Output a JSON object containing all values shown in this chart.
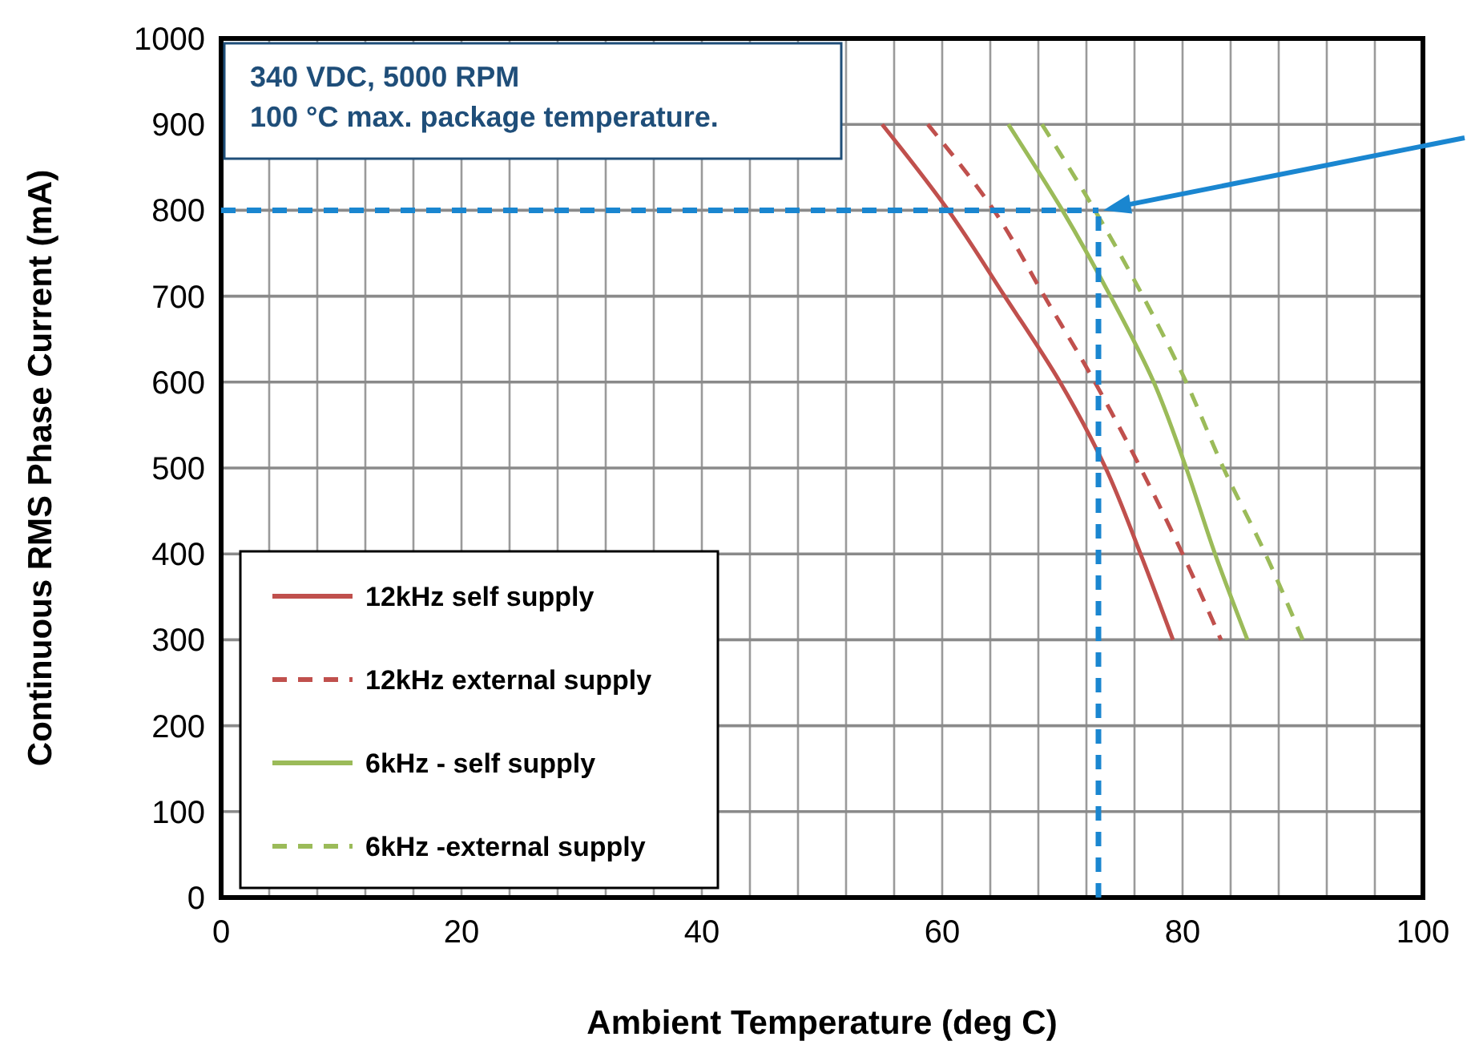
{
  "chart_data": {
    "type": "line",
    "xlabel": "Ambient Temperature (deg C)",
    "ylabel": "Continuous RMS Phase Current (mA)",
    "annotations": [
      "340 VDC, 5000 RPM\n100 °C max. package temperature."
    ],
    "xlim": [
      0,
      100
    ],
    "xticks": [
      0,
      20,
      40,
      60,
      80,
      100
    ],
    "ylim": [
      0,
      1000
    ],
    "yticks": [
      0,
      100,
      200,
      300,
      400,
      500,
      600,
      700,
      800,
      900,
      1000
    ],
    "grid": true,
    "legend": "bottom left",
    "series": [
      {
        "name": "12kHz self supply",
        "color": "#c0504d",
        "line_style": "solid",
        "x": [
          55,
          60.5,
          65.2,
          69.8,
          73.6,
          76.5,
          79.2
        ],
        "values": [
          900,
          800,
          700,
          600,
          500,
          400,
          300
        ]
      },
      {
        "name": "12kHz external supply",
        "color": "#c0504d",
        "line_style": "dashed",
        "x": [
          58.8,
          64.3,
          68.5,
          72.7,
          76.5,
          80,
          83.2
        ],
        "values": [
          900,
          800,
          700,
          600,
          500,
          400,
          300
        ]
      },
      {
        "name": "6kHz - self supply",
        "color": "#9bbb59",
        "line_style": "solid",
        "x": [
          65.5,
          70,
          74,
          77.6,
          80.3,
          82.7,
          85.4
        ],
        "values": [
          900,
          800,
          700,
          600,
          500,
          400,
          300
        ]
      },
      {
        "name": "6kHz -external supply",
        "color": "#9bbb59",
        "line_style": "dashed",
        "x": [
          68.3,
          72.7,
          76.7,
          80.3,
          83.4,
          86.9,
          90
        ],
        "values": [
          900,
          800,
          700,
          600,
          500,
          400,
          300
        ]
      }
    ],
    "ref_lines": [
      {
        "axis": "y",
        "value": 800,
        "color": "#1a86d0",
        "line_style": "dashed"
      },
      {
        "axis": "x",
        "value": 73,
        "color": "#1a86d0",
        "line_style": "dashed"
      }
    ]
  }
}
